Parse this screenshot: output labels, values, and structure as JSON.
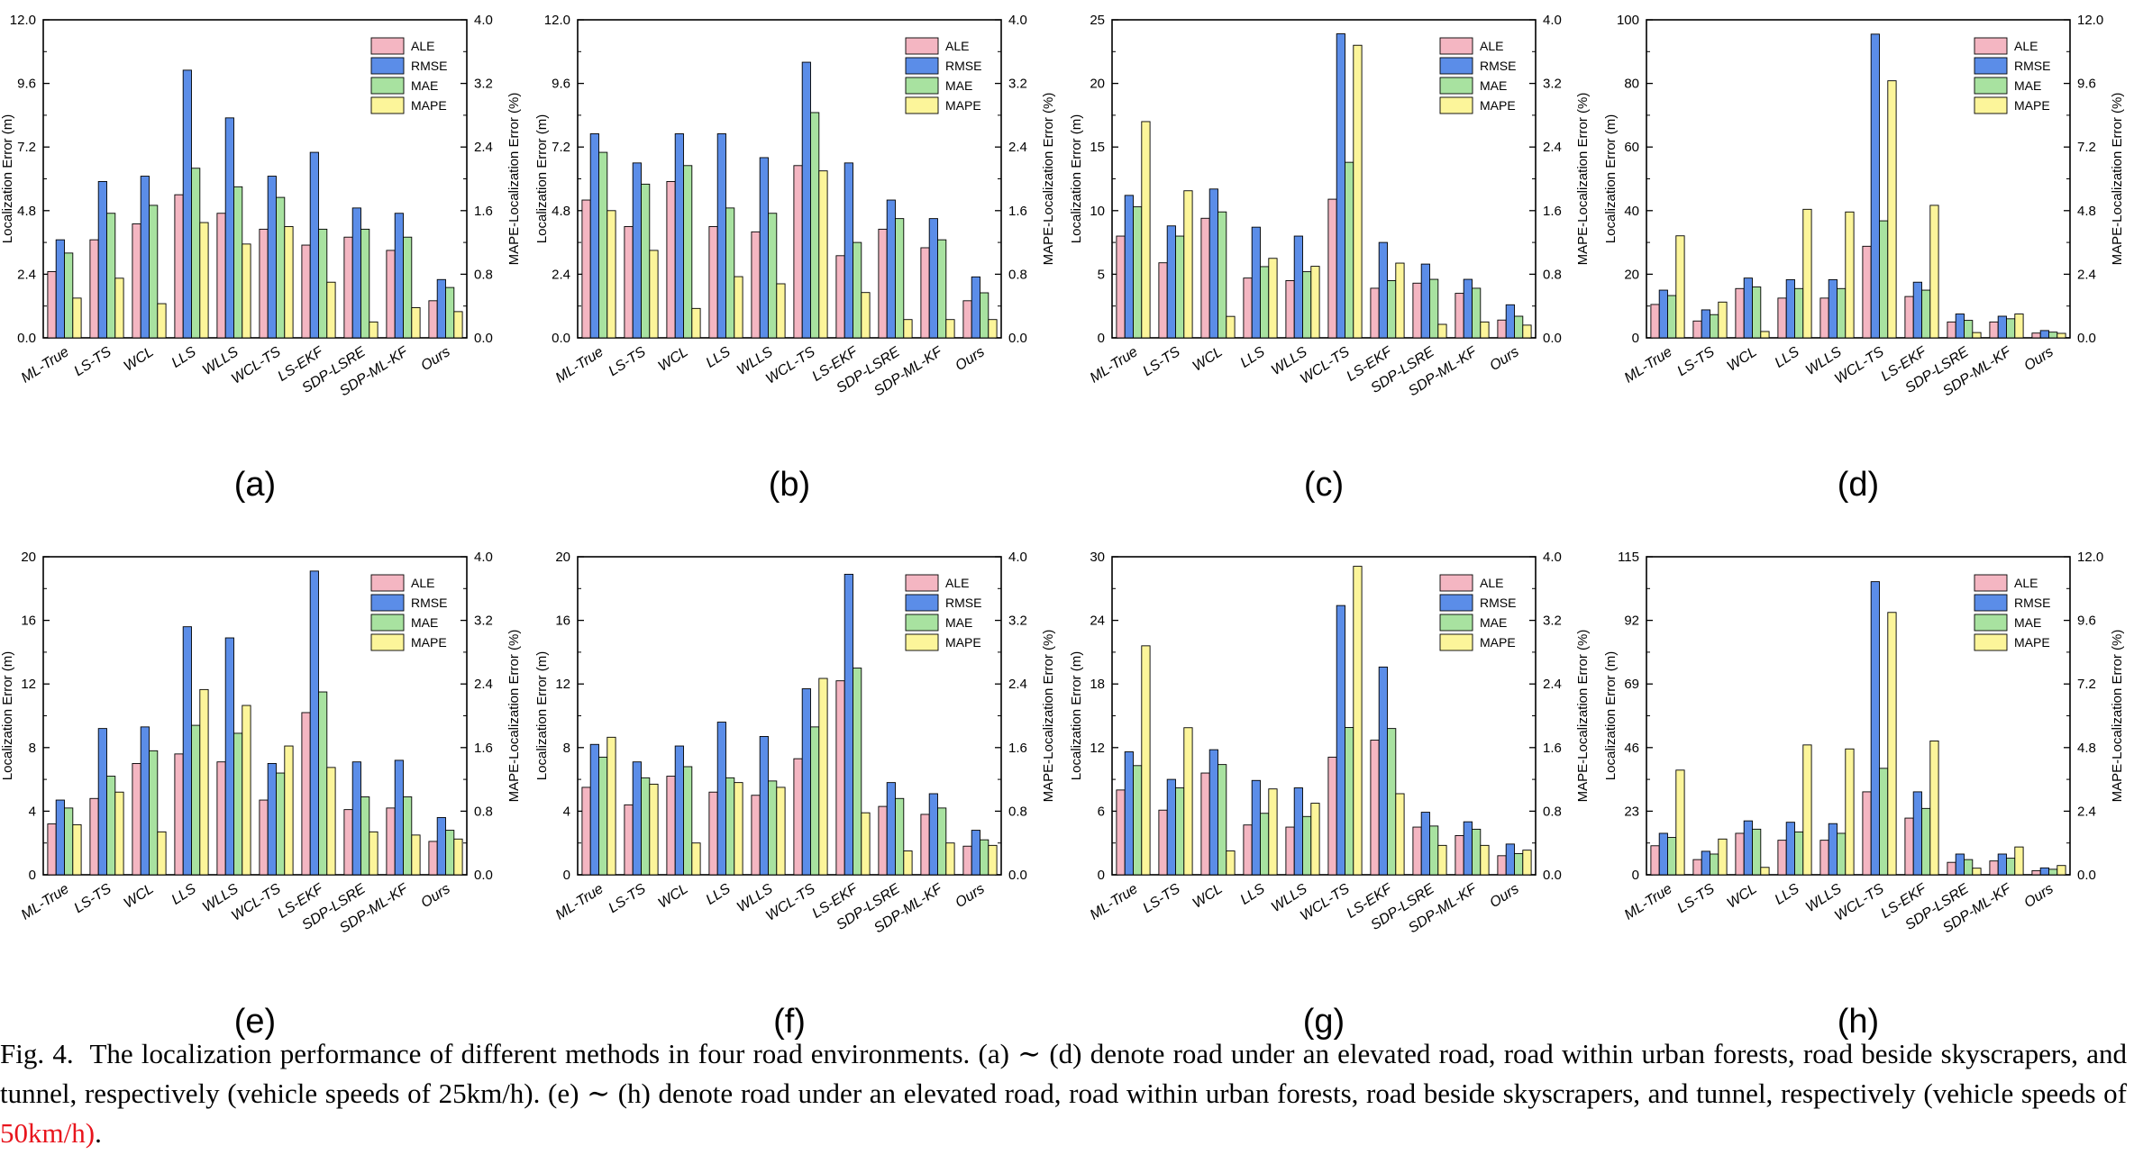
{
  "figure": {
    "caption": {
      "prefix": "Fig. 4.",
      "text": "The localization performance of different methods in four road environments. (a) ∼ (d) denote road under an elevated road, road within urban forests, road beside skyscrapers, and tunnel, respectively (vehicle speeds of 25km/h). (e) ∼ (h) denote road under an elevated road, road within urban forests, road beside skyscrapers, and tunnel, respectively (vehicle speeds of ",
      "highlight": "50km/h)",
      "suffix": ".",
      "highlight_color": "#e8141c"
    }
  },
  "legend": [
    "ALE",
    "RMSE",
    "MAE",
    "MAPE"
  ],
  "colors": {
    "ALE": "#f4b6c2",
    "RMSE": "#5b8de8",
    "MAE": "#a8e2a0",
    "MAPE": "#fcf59a"
  },
  "methods": [
    "ML-True",
    "LS-TS",
    "WCL",
    "LLS",
    "WLLS",
    "WCL-TS",
    "LS-EKF",
    "SDP-LSRE",
    "SDP-ML-KF",
    "Ours"
  ],
  "ylabel_left": "Localization Error (m)",
  "ylabel_right": "MAPE-Localization Error (%)",
  "chart_data": [
    {
      "type": "bar",
      "label": "(a)",
      "ylim": [
        0,
        12
      ],
      "yticks": [
        "0.0",
        "2.4",
        "4.8",
        "7.2",
        "9.6",
        "12.0"
      ],
      "y2lim": [
        0,
        4
      ],
      "y2ticks": [
        "0.0",
        "0.8",
        "1.6",
        "2.4",
        "3.2",
        "4.0"
      ],
      "series": [
        {
          "name": "ALE",
          "values": [
            2.5,
            3.7,
            4.3,
            5.4,
            4.7,
            4.1,
            3.5,
            3.8,
            3.3,
            1.4
          ]
        },
        {
          "name": "RMSE",
          "values": [
            3.7,
            5.9,
            6.1,
            10.1,
            8.3,
            6.1,
            7.0,
            4.9,
            4.7,
            2.2
          ]
        },
        {
          "name": "MAE",
          "values": [
            3.2,
            4.7,
            5.0,
            6.4,
            5.7,
            5.3,
            4.1,
            4.1,
            3.8,
            1.9
          ]
        },
        {
          "name": "MAPE",
          "values": [
            0.5,
            0.75,
            0.43,
            1.45,
            1.18,
            1.4,
            0.7,
            0.2,
            0.38,
            0.33
          ]
        }
      ]
    },
    {
      "type": "bar",
      "label": "(b)",
      "ylim": [
        0,
        12
      ],
      "yticks": [
        "0.0",
        "2.4",
        "4.8",
        "7.2",
        "9.6",
        "12.0"
      ],
      "y2lim": [
        0,
        4
      ],
      "y2ticks": [
        "0.0",
        "0.8",
        "1.6",
        "2.4",
        "3.2",
        "4.0"
      ],
      "series": [
        {
          "name": "ALE",
          "values": [
            5.2,
            4.2,
            5.9,
            4.2,
            4.0,
            6.5,
            3.1,
            4.1,
            3.4,
            1.4
          ]
        },
        {
          "name": "RMSE",
          "values": [
            7.7,
            6.6,
            7.7,
            7.7,
            6.8,
            10.4,
            6.6,
            5.2,
            4.5,
            2.3
          ]
        },
        {
          "name": "MAE",
          "values": [
            7.0,
            5.8,
            6.5,
            4.9,
            4.7,
            8.5,
            3.6,
            4.5,
            3.7,
            1.7
          ]
        },
        {
          "name": "MAPE",
          "values": [
            1.6,
            1.1,
            0.37,
            0.77,
            0.68,
            2.1,
            0.57,
            0.23,
            0.23,
            0.23
          ]
        }
      ]
    },
    {
      "type": "bar",
      "label": "(c)",
      "ylim": [
        0,
        25
      ],
      "yticks": [
        "0",
        "5",
        "10",
        "15",
        "20",
        "25"
      ],
      "y2lim": [
        0,
        4
      ],
      "y2ticks": [
        "0.0",
        "0.8",
        "1.6",
        "2.4",
        "3.2",
        "4.0"
      ],
      "series": [
        {
          "name": "ALE",
          "values": [
            8.0,
            5.9,
            9.4,
            4.7,
            4.5,
            10.9,
            3.9,
            4.3,
            3.5,
            1.4
          ]
        },
        {
          "name": "RMSE",
          "values": [
            11.2,
            8.8,
            11.7,
            8.7,
            8.0,
            23.9,
            7.5,
            5.8,
            4.6,
            2.6
          ]
        },
        {
          "name": "MAE",
          "values": [
            10.3,
            8.0,
            9.9,
            5.6,
            5.2,
            13.8,
            4.5,
            4.6,
            3.9,
            1.7
          ]
        },
        {
          "name": "MAPE",
          "values": [
            2.72,
            1.85,
            0.27,
            1.0,
            0.9,
            3.68,
            0.94,
            0.17,
            0.2,
            0.16
          ]
        }
      ]
    },
    {
      "type": "bar",
      "label": "(d)",
      "ylim": [
        0,
        100
      ],
      "yticks": [
        "0",
        "20",
        "40",
        "60",
        "80",
        "100"
      ],
      "y2lim": [
        0,
        12
      ],
      "y2ticks": [
        "0.0",
        "2.4",
        "4.8",
        "7.2",
        "9.6",
        "12.0"
      ],
      "series": [
        {
          "name": "ALE",
          "values": [
            10.5,
            5.3,
            15.5,
            12.5,
            12.5,
            28.8,
            13.0,
            5.0,
            5.0,
            1.5
          ]
        },
        {
          "name": "RMSE",
          "values": [
            15.0,
            8.8,
            18.8,
            18.3,
            18.3,
            95.5,
            17.5,
            7.5,
            6.8,
            2.3
          ]
        },
        {
          "name": "MAE",
          "values": [
            13.3,
            7.3,
            16.0,
            15.5,
            15.5,
            36.8,
            15.0,
            5.5,
            6.0,
            1.8
          ]
        },
        {
          "name": "MAPE",
          "values": [
            3.85,
            1.35,
            0.24,
            4.85,
            4.75,
            9.7,
            5.0,
            0.2,
            0.9,
            0.17
          ]
        }
      ]
    },
    {
      "type": "bar",
      "label": "(e)",
      "ylim": [
        0,
        20
      ],
      "yticks": [
        "0",
        "4",
        "8",
        "12",
        "16",
        "20"
      ],
      "y2lim": [
        0,
        4
      ],
      "y2ticks": [
        "0.0",
        "0.8",
        "1.6",
        "2.4",
        "3.2",
        "4.0"
      ],
      "series": [
        {
          "name": "ALE",
          "values": [
            3.2,
            4.8,
            7.0,
            7.6,
            7.1,
            4.7,
            10.2,
            4.1,
            4.2,
            2.1
          ]
        },
        {
          "name": "RMSE",
          "values": [
            4.7,
            9.2,
            9.3,
            15.6,
            14.9,
            7.0,
            19.1,
            7.1,
            7.2,
            3.6
          ]
        },
        {
          "name": "MAE",
          "values": [
            4.2,
            6.2,
            7.8,
            9.4,
            8.9,
            6.4,
            11.5,
            4.9,
            4.9,
            2.8
          ]
        },
        {
          "name": "MAPE",
          "values": [
            0.63,
            1.04,
            0.54,
            2.33,
            2.13,
            1.62,
            1.35,
            0.54,
            0.5,
            0.45
          ]
        }
      ]
    },
    {
      "type": "bar",
      "label": "(f)",
      "ylim": [
        0,
        20
      ],
      "yticks": [
        "0",
        "4",
        "8",
        "12",
        "16",
        "20"
      ],
      "y2lim": [
        0,
        4
      ],
      "y2ticks": [
        "0.0",
        "0.8",
        "1.6",
        "2.4",
        "3.2",
        "4.0"
      ],
      "series": [
        {
          "name": "ALE",
          "values": [
            5.5,
            4.4,
            6.2,
            5.2,
            5.0,
            7.3,
            12.2,
            4.3,
            3.8,
            1.8
          ]
        },
        {
          "name": "RMSE",
          "values": [
            8.2,
            7.1,
            8.1,
            9.6,
            8.7,
            11.7,
            18.9,
            5.8,
            5.1,
            2.8
          ]
        },
        {
          "name": "MAE",
          "values": [
            7.4,
            6.1,
            6.8,
            6.1,
            5.9,
            9.3,
            13.0,
            4.8,
            4.2,
            2.2
          ]
        },
        {
          "name": "MAPE",
          "values": [
            1.73,
            1.14,
            0.4,
            1.16,
            1.1,
            2.47,
            0.78,
            0.3,
            0.4,
            0.37
          ]
        }
      ]
    },
    {
      "type": "bar",
      "label": "(g)",
      "ylim": [
        0,
        30
      ],
      "yticks": [
        "0",
        "6",
        "12",
        "18",
        "24",
        "30"
      ],
      "y2lim": [
        0,
        4
      ],
      "y2ticks": [
        "0.0",
        "0.8",
        "1.6",
        "2.4",
        "3.2",
        "4.0"
      ],
      "series": [
        {
          "name": "ALE",
          "values": [
            8.0,
            6.1,
            9.6,
            4.7,
            4.5,
            11.1,
            12.7,
            4.5,
            3.7,
            1.8
          ]
        },
        {
          "name": "RMSE",
          "values": [
            11.6,
            9.0,
            11.8,
            8.9,
            8.2,
            25.4,
            19.6,
            5.9,
            5.0,
            2.9
          ]
        },
        {
          "name": "MAE",
          "values": [
            10.3,
            8.2,
            10.4,
            5.8,
            5.5,
            13.9,
            13.8,
            4.6,
            4.3,
            2.0
          ]
        },
        {
          "name": "MAPE",
          "values": [
            2.88,
            1.85,
            0.3,
            1.08,
            0.9,
            3.88,
            1.02,
            0.37,
            0.37,
            0.31
          ]
        }
      ]
    },
    {
      "type": "bar",
      "label": "(h)",
      "ylim": [
        0,
        115
      ],
      "yticks": [
        "0",
        "23",
        "46",
        "69",
        "92",
        "115"
      ],
      "y2lim": [
        0,
        12
      ],
      "y2ticks": [
        "0.0",
        "2.4",
        "4.8",
        "7.2",
        "9.6",
        "12.0"
      ],
      "series": [
        {
          "name": "ALE",
          "values": [
            10.5,
            5.5,
            15.0,
            12.5,
            12.5,
            30.0,
            20.5,
            4.5,
            5.0,
            1.5
          ]
        },
        {
          "name": "RMSE",
          "values": [
            15.0,
            8.5,
            19.5,
            19.0,
            18.5,
            106.0,
            30.0,
            7.5,
            7.5,
            2.5
          ]
        },
        {
          "name": "MAE",
          "values": [
            13.5,
            7.5,
            16.5,
            15.5,
            15.0,
            38.5,
            24.0,
            5.5,
            6.0,
            2.0
          ]
        },
        {
          "name": "MAPE",
          "values": [
            3.95,
            1.35,
            0.28,
            4.9,
            4.75,
            9.9,
            5.05,
            0.25,
            1.05,
            0.35
          ]
        }
      ]
    }
  ]
}
